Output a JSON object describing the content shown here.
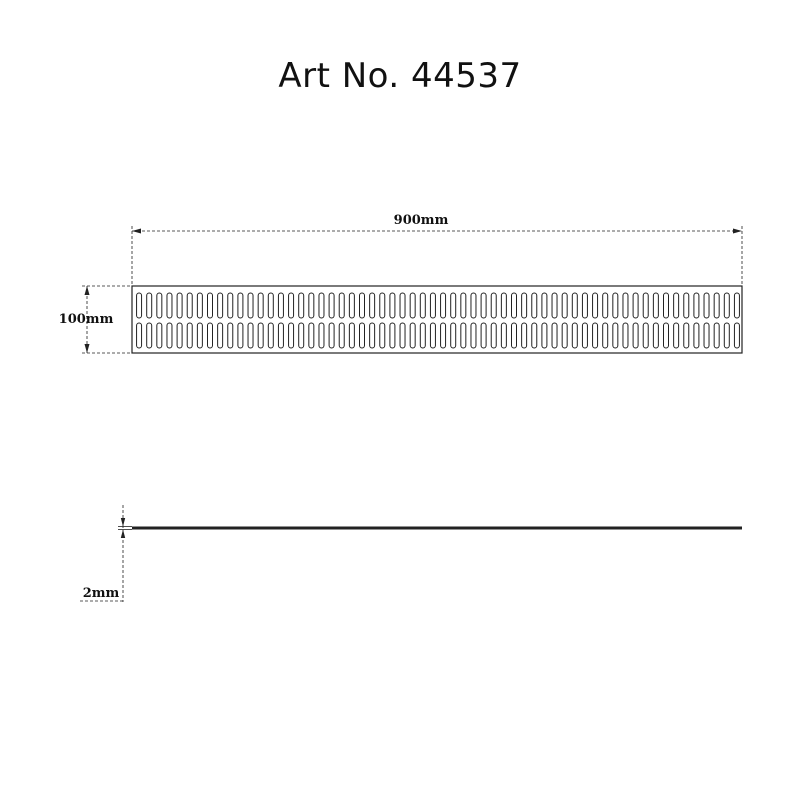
{
  "title": "Art No. 44537",
  "dimensions": {
    "width_label": "900mm",
    "height_label": "100mm",
    "thickness_label": "2mm"
  },
  "colors": {
    "line": "#222222",
    "background": "#ffffff"
  },
  "grate": {
    "slot_rows": 2,
    "slots_per_row": 60
  }
}
